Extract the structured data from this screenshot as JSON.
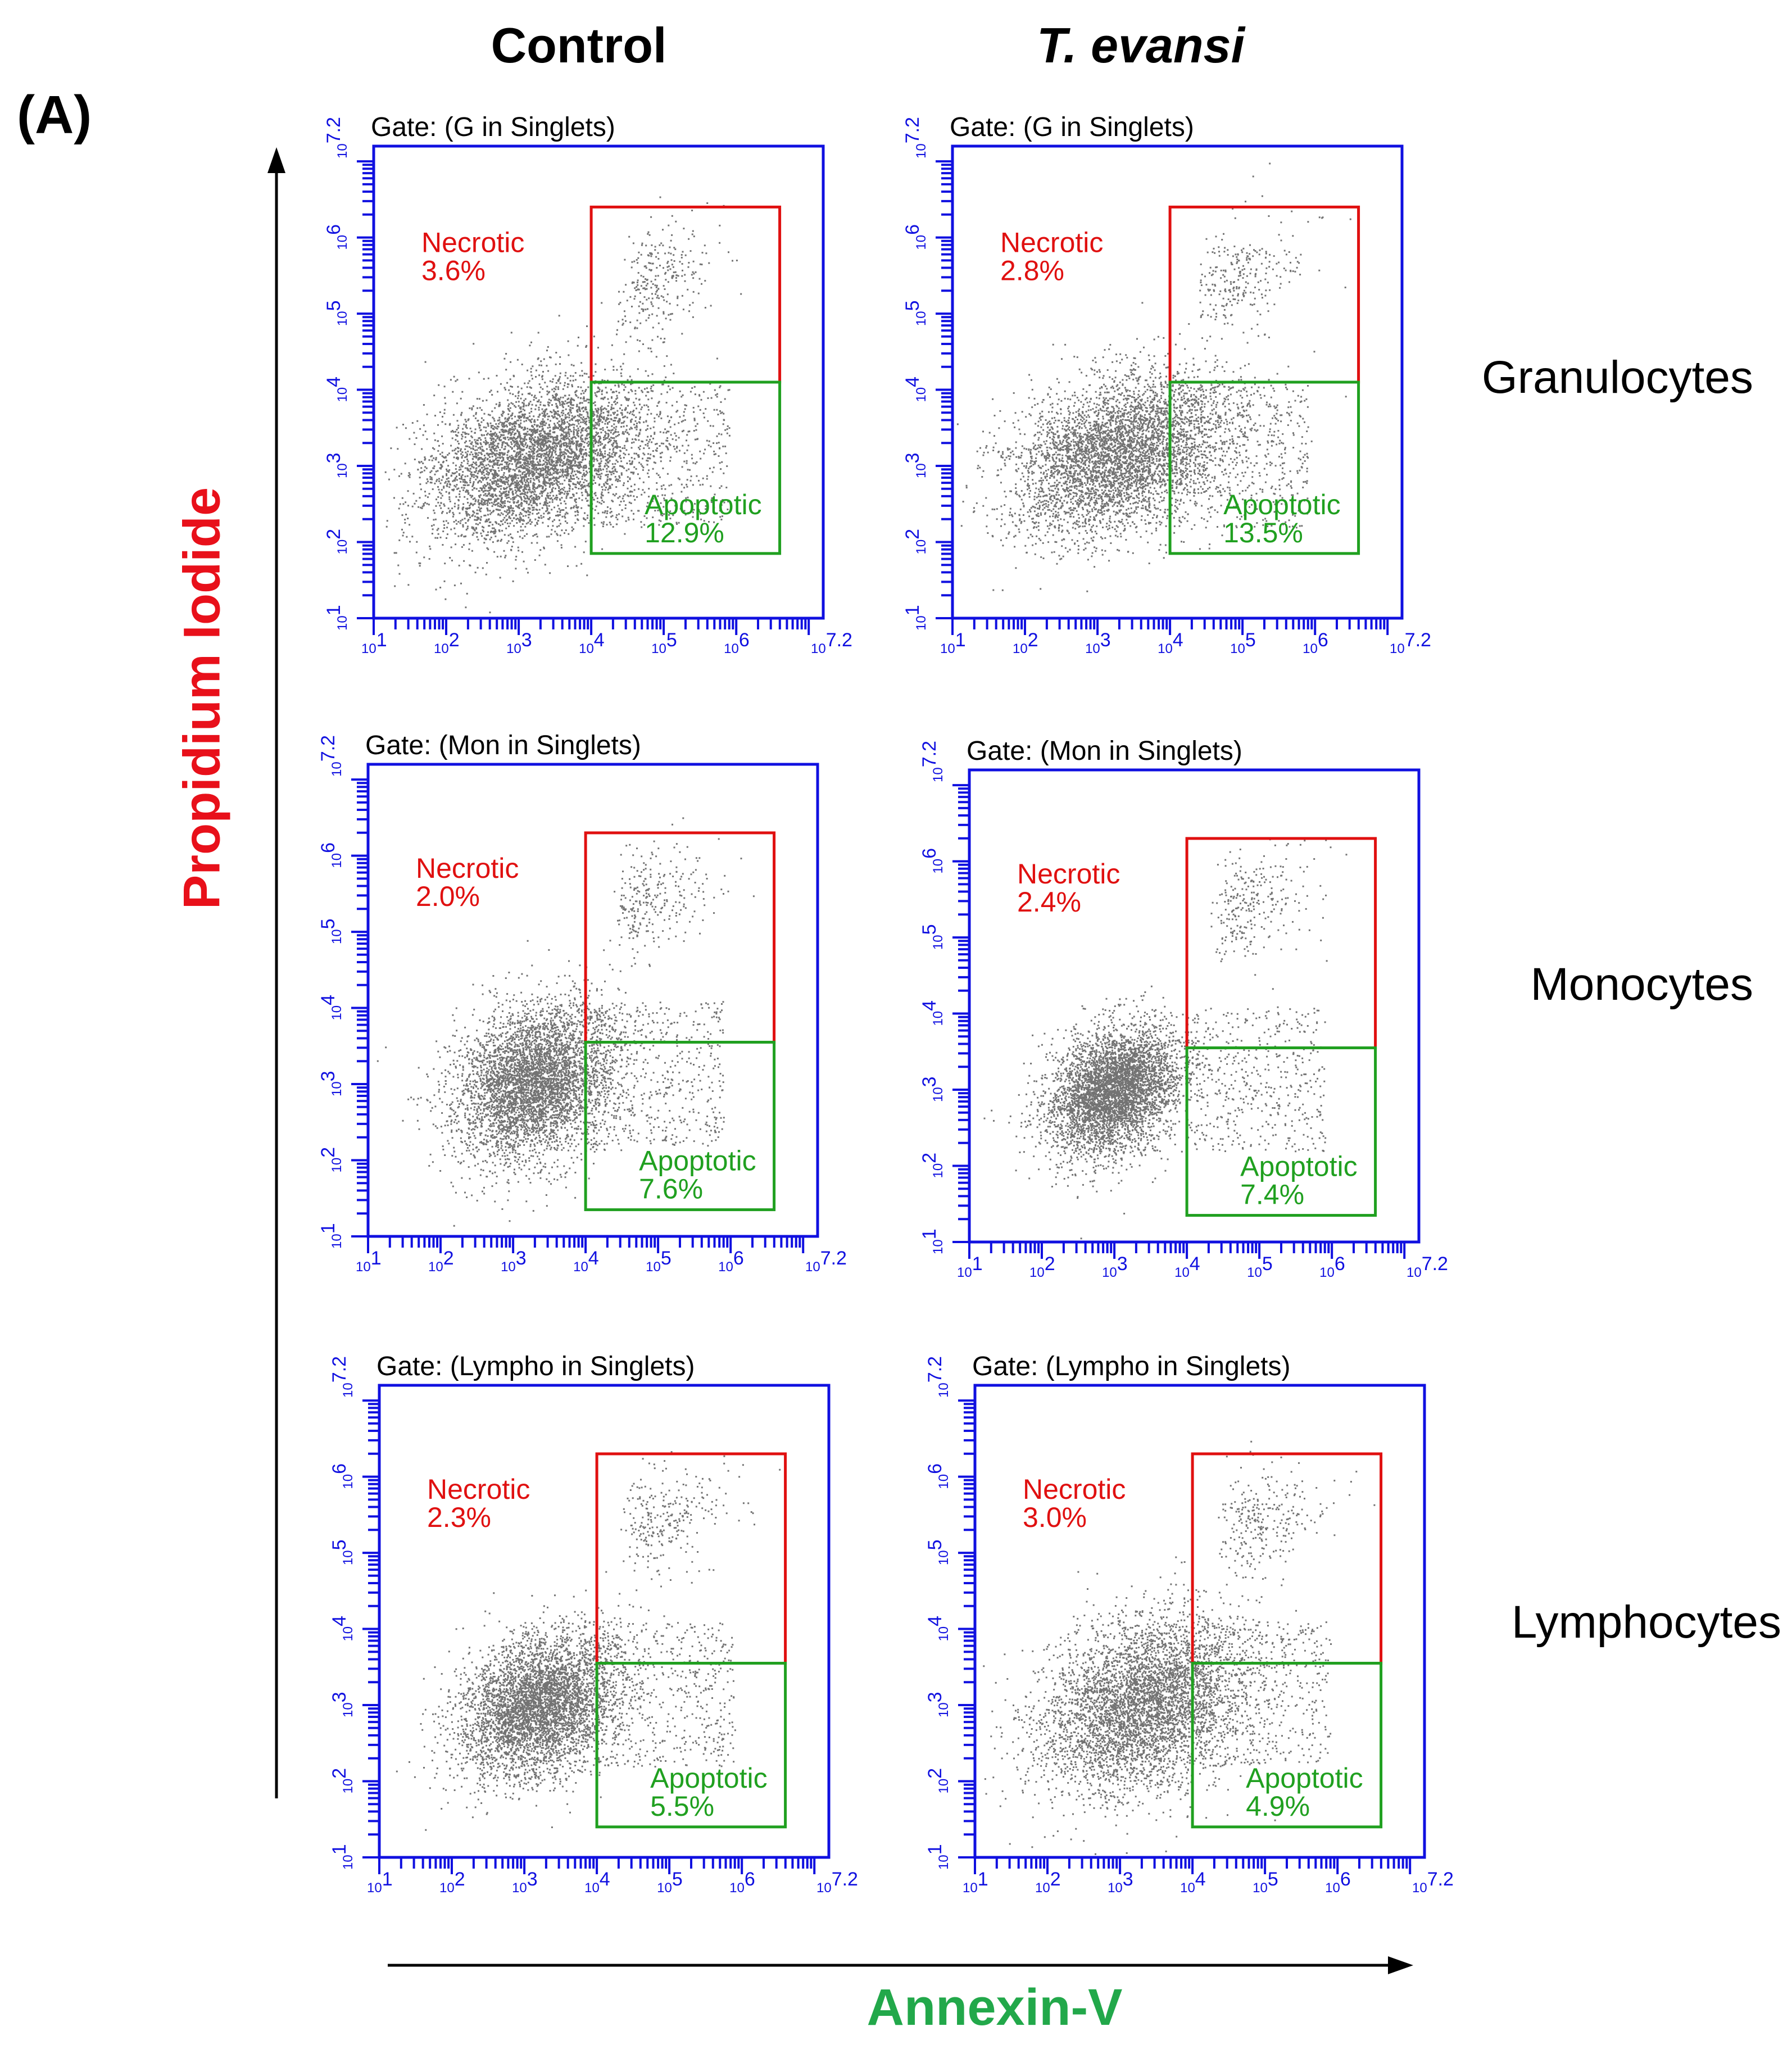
{
  "panel_label": "(A)",
  "columns": [
    "Control",
    "T. evansi"
  ],
  "rows": [
    "Granulocytes",
    "Monocytes",
    "Lymphocytes"
  ],
  "y_axis_label": "Propidium Iodide",
  "x_axis_label": "Annexin-V",
  "colors": {
    "plot_frame": "#1010e0",
    "tick": "#1010e0",
    "necrotic": "#e01010",
    "apoptotic": "#20a020",
    "points": "#000000",
    "y_label": "#e8101a",
    "x_label": "#22a84a"
  },
  "chart_data": [
    {
      "type": "scatter",
      "row": "Granulocytes",
      "column": "Control",
      "gate": "Gate: (G in Singlets)",
      "xlabel": "Annexin-V",
      "ylabel": "Propidium Iodide",
      "xlim": [
        1,
        7.2
      ],
      "ylim": [
        1,
        7.2
      ],
      "scale": "log10",
      "tick_labels": [
        "10^1",
        "10^2",
        "10^3",
        "10^4",
        "10^5",
        "10^6",
        "10^7.2"
      ],
      "gates": [
        {
          "name": "Necrotic",
          "percent": "3.6%",
          "x": [
            4.0,
            6.6
          ],
          "y": [
            4.1,
            6.4
          ]
        },
        {
          "name": "Apoptotic",
          "percent": "12.9%",
          "x": [
            4.0,
            6.6
          ],
          "y": [
            1.85,
            4.1
          ]
        }
      ],
      "populations": [
        {
          "center": [
            3.2,
            3.1
          ],
          "spread": [
            0.75,
            0.5
          ]
        }
      ]
    },
    {
      "type": "scatter",
      "row": "Granulocytes",
      "column": "T. evansi",
      "gate": "Gate: (G in Singlets)",
      "xlabel": "Annexin-V",
      "ylabel": "Propidium Iodide",
      "xlim": [
        1,
        7.2
      ],
      "ylim": [
        1,
        7.2
      ],
      "scale": "log10",
      "tick_labels": [
        "10^1",
        "10^2",
        "10^3",
        "10^4",
        "10^5",
        "10^6",
        "10^7.2"
      ],
      "gates": [
        {
          "name": "Necrotic",
          "percent": "2.8%",
          "x": [
            4.0,
            6.6
          ],
          "y": [
            4.1,
            6.4
          ]
        },
        {
          "name": "Apoptotic",
          "percent": "13.5%",
          "x": [
            4.0,
            6.6
          ],
          "y": [
            1.85,
            4.1
          ]
        }
      ],
      "populations": [
        {
          "center": [
            3.3,
            3.15
          ],
          "spread": [
            0.75,
            0.5
          ]
        }
      ]
    },
    {
      "type": "scatter",
      "row": "Monocytes",
      "column": "Control",
      "gate": "Gate: (Mon in Singlets)",
      "xlabel": "Annexin-V",
      "ylabel": "Propidium Iodide",
      "xlim": [
        1,
        7.2
      ],
      "ylim": [
        1,
        7.2
      ],
      "scale": "log10",
      "tick_labels": [
        "10^1",
        "10^2",
        "10^3",
        "10^4",
        "10^5",
        "10^6",
        "10^7.2"
      ],
      "gates": [
        {
          "name": "Necrotic",
          "percent": "2.0%",
          "x": [
            4.0,
            6.6
          ],
          "y": [
            3.55,
            6.3
          ]
        },
        {
          "name": "Apoptotic",
          "percent": "7.6%",
          "x": [
            4.0,
            6.6
          ],
          "y": [
            1.35,
            3.55
          ]
        }
      ],
      "populations": [
        {
          "center": [
            3.3,
            3.05
          ],
          "spread": [
            0.55,
            0.5
          ]
        }
      ]
    },
    {
      "type": "scatter",
      "row": "Monocytes",
      "column": "T. evansi",
      "gate": "Gate: (Mon in Singlets)",
      "xlabel": "Annexin-V",
      "ylabel": "Propidium Iodide",
      "xlim": [
        1,
        7.2
      ],
      "ylim": [
        1,
        7.2
      ],
      "scale": "log10",
      "tick_labels": [
        "10^1",
        "10^2",
        "10^3",
        "10^4",
        "10^5",
        "10^6",
        "10^7.2"
      ],
      "gates": [
        {
          "name": "Necrotic",
          "percent": "2.4%",
          "x": [
            4.0,
            6.6
          ],
          "y": [
            3.55,
            6.3
          ]
        },
        {
          "name": "Apoptotic",
          "percent": "7.4%",
          "x": [
            4.0,
            6.6
          ],
          "y": [
            1.35,
            3.55
          ]
        }
      ],
      "populations": [
        {
          "center": [
            3.0,
            3.0
          ],
          "spread": [
            0.45,
            0.4
          ]
        }
      ]
    },
    {
      "type": "scatter",
      "row": "Lymphocytes",
      "column": "Control",
      "gate": "Gate: (Lympho in Singlets)",
      "xlabel": "Annexin-V",
      "ylabel": "Propidium Iodide",
      "xlim": [
        1,
        7.2
      ],
      "ylim": [
        1,
        7.2
      ],
      "scale": "log10",
      "tick_labels": [
        "10^1",
        "10^2",
        "10^3",
        "10^4",
        "10^5",
        "10^6",
        "10^7.2"
      ],
      "gates": [
        {
          "name": "Necrotic",
          "percent": "2.3%",
          "x": [
            4.0,
            6.6
          ],
          "y": [
            3.55,
            6.3
          ]
        },
        {
          "name": "Apoptotic",
          "percent": "5.5%",
          "x": [
            4.0,
            6.6
          ],
          "y": [
            1.4,
            3.55
          ]
        }
      ],
      "populations": [
        {
          "center": [
            3.2,
            3.0
          ],
          "spread": [
            0.55,
            0.45
          ]
        }
      ]
    },
    {
      "type": "scatter",
      "row": "Lymphocytes",
      "column": "T. evansi",
      "gate": "Gate: (Lympho in Singlets)",
      "xlabel": "Annexin-V",
      "ylabel": "Propidium Iodide",
      "xlim": [
        1,
        7.2
      ],
      "ylim": [
        1,
        7.2
      ],
      "scale": "log10",
      "tick_labels": [
        "10^1",
        "10^2",
        "10^3",
        "10^4",
        "10^5",
        "10^6",
        "10^7.2"
      ],
      "gates": [
        {
          "name": "Necrotic",
          "percent": "3.0%",
          "x": [
            4.0,
            6.6
          ],
          "y": [
            3.55,
            6.3
          ]
        },
        {
          "name": "Apoptotic",
          "percent": "4.9%",
          "x": [
            4.0,
            6.6
          ],
          "y": [
            1.4,
            3.55
          ]
        }
      ],
      "populations": [
        {
          "center": [
            3.3,
            3.0
          ],
          "spread": [
            0.7,
            0.55
          ]
        }
      ]
    }
  ]
}
